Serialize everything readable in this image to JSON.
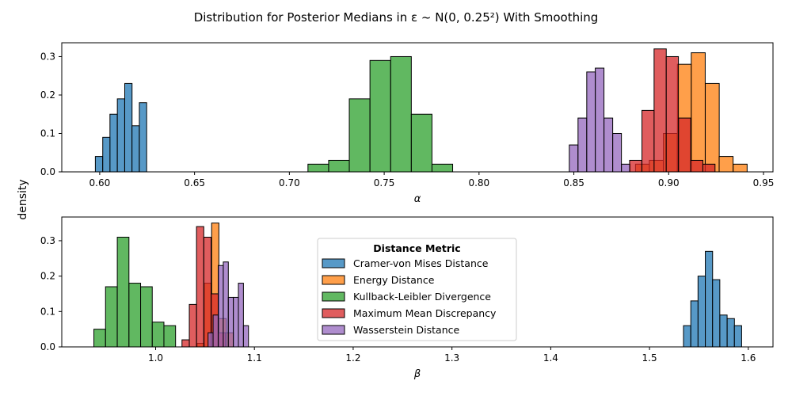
{
  "figure": {
    "title": "Distribution for Posterior Medians in ε ~ N(0, 0.25²) With Smoothing",
    "ylabel": "density"
  },
  "colors": {
    "Cramer-von Mises Distance": "#1f77b4",
    "Energy Distance": "#ff7f0e",
    "Kullback-Leibler Divergence": "#2ca02c",
    "Maximum Mean Discrepancy": "#d62728",
    "Wasserstein Distance": "#9467bd"
  },
  "legend": {
    "title": "Distance Metric",
    "entries": [
      "Cramer-von Mises Distance",
      "Energy Distance",
      "Kullback-Leibler Divergence",
      "Maximum Mean Discrepancy",
      "Wasserstein Distance"
    ]
  },
  "chart_data": [
    {
      "type": "histogram",
      "xlabel": "α",
      "xlim": [
        0.58,
        0.955
      ],
      "ylim": [
        0,
        0.336
      ],
      "xticks": [
        0.6,
        0.65,
        0.7,
        0.75,
        0.8,
        0.85,
        0.9,
        0.95
      ],
      "xtick_labels": [
        "0.60",
        "0.65",
        "0.70",
        "0.75",
        "0.80",
        "0.85",
        "0.90",
        "0.95"
      ],
      "yticks": [
        0.0,
        0.1,
        0.2,
        0.3
      ],
      "ytick_labels": [
        "0.0",
        "0.1",
        "0.2",
        "0.3"
      ],
      "series": [
        {
          "name": "Kullback-Leibler Divergence",
          "bin_width": 0.0109,
          "bins": [
            [
              0.7098,
              0.02
            ],
            [
              0.7207,
              0.03
            ],
            [
              0.7316,
              0.19
            ],
            [
              0.7425,
              0.29
            ],
            [
              0.7534,
              0.3
            ],
            [
              0.7643,
              0.15
            ],
            [
              0.7752,
              0.02
            ]
          ]
        },
        {
          "name": "Cramer-von Mises Distance",
          "bin_width": 0.00386,
          "bins": [
            [
              0.5977,
              0.04
            ],
            [
              0.6016,
              0.09
            ],
            [
              0.6054,
              0.15
            ],
            [
              0.6093,
              0.19
            ],
            [
              0.6132,
              0.23
            ],
            [
              0.617,
              0.12
            ],
            [
              0.6209,
              0.18
            ]
          ]
        },
        {
          "name": "Wasserstein Distance",
          "bin_width": 0.00458,
          "bins": [
            [
              0.8476,
              0.07
            ],
            [
              0.8522,
              0.14
            ],
            [
              0.8568,
              0.26
            ],
            [
              0.8613,
              0.27
            ],
            [
              0.8659,
              0.14
            ],
            [
              0.8705,
              0.1
            ],
            [
              0.8751,
              0.02
            ]
          ]
        },
        {
          "name": "Energy Distance",
          "bin_width": 0.00736,
          "bins": [
            [
              0.8825,
              0.02
            ],
            [
              0.8898,
              0.03
            ],
            [
              0.8972,
              0.1
            ],
            [
              0.9046,
              0.28
            ],
            [
              0.9119,
              0.31
            ],
            [
              0.9193,
              0.23
            ],
            [
              0.9266,
              0.04
            ],
            [
              0.934,
              0.02
            ]
          ]
        },
        {
          "name": "Maximum Mean Discrepancy",
          "bin_width": 0.00643,
          "bins": [
            [
              0.8794,
              0.03
            ],
            [
              0.8859,
              0.16
            ],
            [
              0.8923,
              0.32
            ],
            [
              0.8987,
              0.3
            ],
            [
              0.9052,
              0.14
            ],
            [
              0.9116,
              0.03
            ],
            [
              0.918,
              0.02
            ]
          ]
        }
      ]
    },
    {
      "type": "histogram",
      "xlabel": "β",
      "xlim": [
        0.905,
        1.625
      ],
      "ylim": [
        0,
        0.367
      ],
      "xticks": [
        1.0,
        1.1,
        1.2,
        1.3,
        1.4,
        1.5,
        1.6
      ],
      "xtick_labels": [
        "1.0",
        "1.1",
        "1.2",
        "1.3",
        "1.4",
        "1.5",
        "1.6"
      ],
      "yticks": [
        0.0,
        0.1,
        0.2,
        0.3
      ],
      "ytick_labels": [
        "0.0",
        "0.1",
        "0.2",
        "0.3"
      ],
      "series": [
        {
          "name": "Kullback-Leibler Divergence",
          "bin_width": 0.0118,
          "bins": [
            [
              0.9375,
              0.05
            ],
            [
              0.9493,
              0.17
            ],
            [
              0.9612,
              0.31
            ],
            [
              0.973,
              0.18
            ],
            [
              0.9848,
              0.17
            ],
            [
              0.9966,
              0.07
            ],
            [
              1.0084,
              0.06
            ]
          ]
        },
        {
          "name": "Cramer-von Mises Distance",
          "bin_width": 0.00736,
          "bins": [
            [
              1.5344,
              0.06
            ],
            [
              1.5418,
              0.13
            ],
            [
              1.5491,
              0.2
            ],
            [
              1.5565,
              0.27
            ],
            [
              1.5638,
              0.19
            ],
            [
              1.5712,
              0.09
            ],
            [
              1.5786,
              0.08
            ],
            [
              1.5859,
              0.06
            ]
          ]
        },
        {
          "name": "Energy Distance",
          "bin_width": 0.00736,
          "bins": [
            [
              1.042,
              0.01
            ],
            [
              1.0493,
              0.18
            ],
            [
              1.0567,
              0.35
            ],
            [
              1.0641,
              0.08
            ],
            [
              1.0714,
              0.04
            ]
          ]
        },
        {
          "name": "Maximum Mean Discrepancy",
          "bin_width": 0.00736,
          "bins": [
            [
              1.0267,
              0.02
            ],
            [
              1.0341,
              0.12
            ],
            [
              1.0414,
              0.34
            ],
            [
              1.0488,
              0.31
            ],
            [
              1.0561,
              0.15
            ],
            [
              1.0635,
              0.04
            ]
          ]
        },
        {
          "name": "Wasserstein Distance",
          "bin_width": 0.00511,
          "bins": [
            [
              1.0531,
              0.04
            ],
            [
              1.0582,
              0.09
            ],
            [
              1.0634,
              0.23
            ],
            [
              1.0685,
              0.24
            ],
            [
              1.0736,
              0.14
            ],
            [
              1.0787,
              0.14
            ],
            [
              1.0838,
              0.18
            ],
            [
              1.0889,
              0.06
            ]
          ]
        }
      ]
    }
  ]
}
